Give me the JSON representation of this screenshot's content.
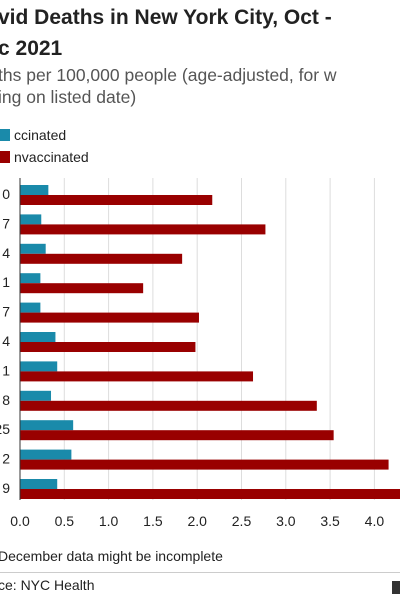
{
  "title_lines": [
    "vid Deaths in New York City, Oct -",
    "c 2021"
  ],
  "subtitle_lines": [
    "ths per 100,000 people (age-adjusted, for w",
    "ing on listed date)"
  ],
  "legend": [
    {
      "label": "ccinated",
      "color": "#1a8aaa"
    },
    {
      "label": "nvaccinated",
      "color": "#990000"
    }
  ],
  "footnote": "December data might be incomplete",
  "source": "ce: NYC Health",
  "chart_data": {
    "type": "bar",
    "orientation": "horizontal",
    "categories": [
      "0",
      "7",
      "4",
      "1",
      "7",
      "4",
      "1",
      "8",
      "25",
      "2",
      "9"
    ],
    "series": [
      {
        "color": "#1a8aaa",
        "values": [
          0.32,
          0.24,
          0.29,
          0.23,
          0.23,
          0.4,
          0.42,
          0.35,
          0.6,
          0.58,
          0.42
        ]
      },
      {
        "color": "#990000",
        "values": [
          2.17,
          2.77,
          1.83,
          1.39,
          2.02,
          1.98,
          2.63,
          3.35,
          3.54,
          4.16,
          4.3
        ]
      }
    ],
    "xlim": [
      0,
      4.3
    ],
    "xticks": [
      "0.0",
      "0.5",
      "1.0",
      "1.5",
      "2.0",
      "2.5",
      "3.0",
      "3.5",
      "4.0"
    ],
    "grid": true,
    "legend_position": "top-left"
  }
}
